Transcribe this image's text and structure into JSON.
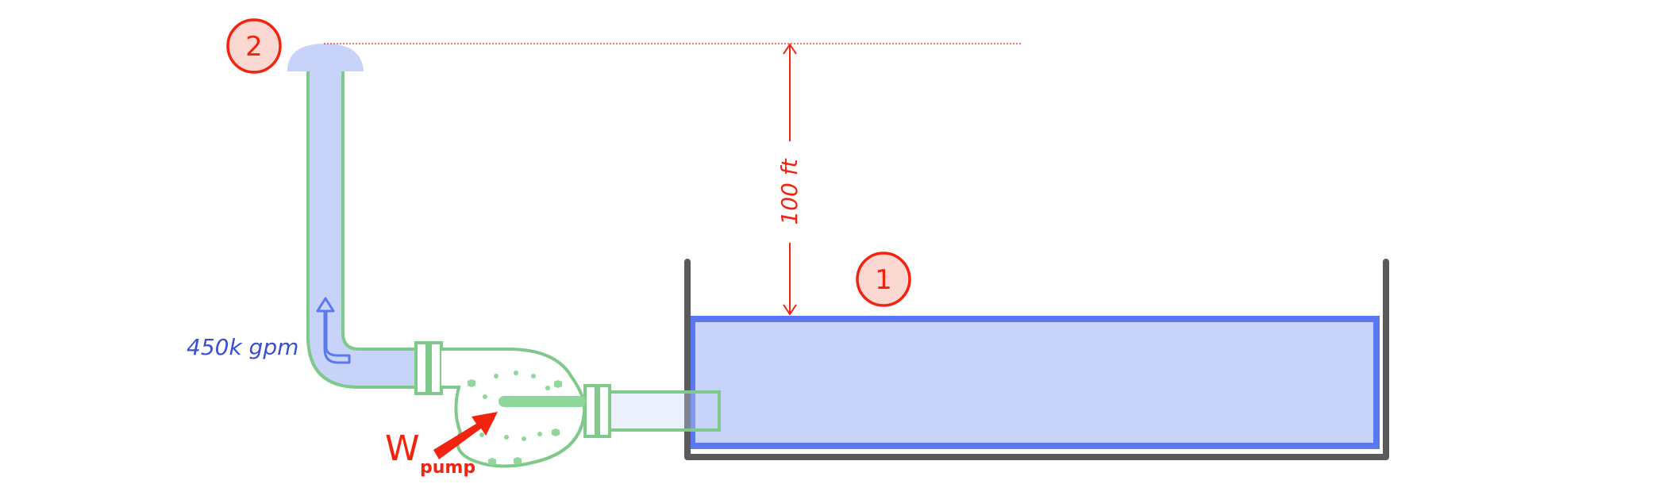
{
  "diagram": {
    "point_2_label": "2",
    "point_1_label": "1",
    "height_label": "100 ft",
    "flow_label": "450k gpm",
    "work_symbol": "W",
    "work_subscript": "pump"
  },
  "colors": {
    "water_fill": "#c8d3fa",
    "water_border": "#5b78f0",
    "pipe_outline": "#7fc98a",
    "pump_dots": "#8fd79a",
    "tank_wall": "#5a5a5a",
    "annotation_red": "#f2230f",
    "marker_fill": "#fbd9d2",
    "flow_text": "#3b4fd0",
    "arrow_blue": "#5b78f0"
  }
}
